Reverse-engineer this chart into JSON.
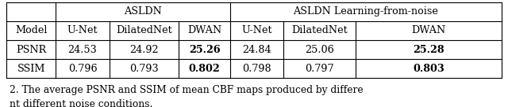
{
  "header1_left": "ASLDN",
  "header1_right": "ASLDN Learning-from-noise",
  "header2": [
    "Model",
    "U-Net",
    "DilatedNet",
    "DWAN",
    "U-Net",
    "DilatedNet",
    "DWAN"
  ],
  "row_psnr": [
    "PSNR",
    "24.53",
    "24.92",
    "25.26",
    "24.84",
    "25.06",
    "25.28"
  ],
  "row_ssim": [
    "SSIM",
    "0.796",
    "0.793",
    "0.802",
    "0.798",
    "0.797",
    "0.803"
  ],
  "bold_psnr": [
    3,
    6
  ],
  "bold_ssim": [
    3,
    6
  ],
  "caption_prefix": "2.",
  "caption_text": " The average PSNR and SSIM of mean CBF maps produced by differe",
  "caption2": "nt different noise conditions.",
  "fig_width": 6.4,
  "fig_height": 1.36,
  "background": "#ffffff",
  "font_size": 9.2,
  "caption_font_size": 8.8
}
